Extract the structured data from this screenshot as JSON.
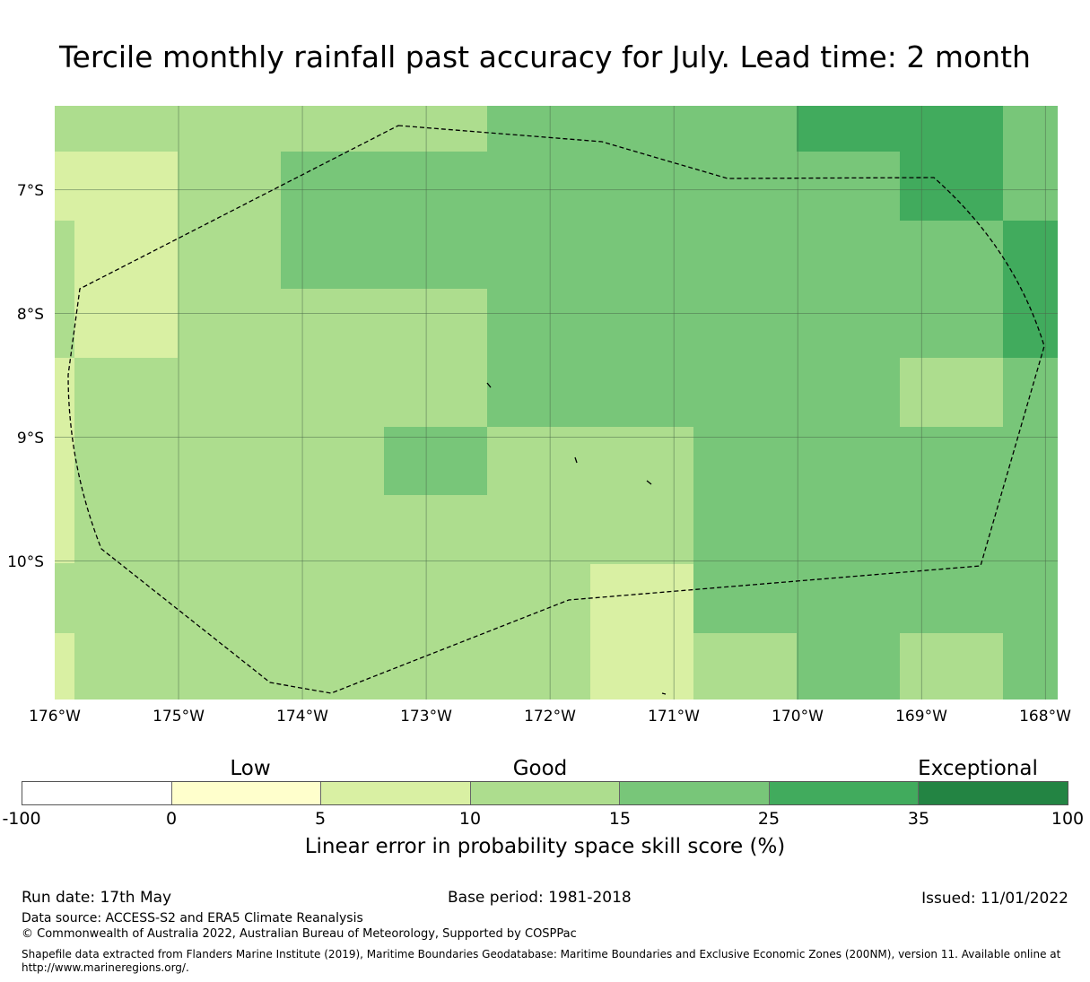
{
  "title": "Tercile monthly rainfall past accuracy for July. Lead time: 2 month",
  "map": {
    "lat_labels": [
      "7°S",
      "8°S",
      "9°S",
      "10°S"
    ],
    "lon_labels": [
      "176°W",
      "175°W",
      "174°W",
      "173°W",
      "172°W",
      "171°W",
      "170°W",
      "169°W",
      "168°W"
    ],
    "extent": {
      "lon_min": -176,
      "lon_max": -167.9,
      "lat_min": -11.12,
      "lat_max": -6.32
    },
    "grid_lines": true,
    "boundary_style": "dashed",
    "colors": {
      "c5": "#d9f0a3",
      "c10": "#addd8e",
      "c15": "#78c679",
      "c25": "#41ab5d",
      "grid": "#4a6a4a",
      "boundary": "#000000"
    }
  },
  "colorbar": {
    "category_labels": [
      "Low",
      "Good",
      "Exceptional"
    ],
    "ticks": [
      "-100",
      "0",
      "5",
      "10",
      "15",
      "25",
      "35",
      "100"
    ],
    "colors": [
      "#ffffff",
      "#ffffcc",
      "#d9f0a3",
      "#addd8e",
      "#78c679",
      "#41ab5d",
      "#238443"
    ],
    "title": "Linear error in probability space skill score (%)"
  },
  "footer": {
    "run_date": "Run date: 17th May",
    "base_period": "Base period: 1981-2018",
    "issued": "Issued: 11/01/2022",
    "data_source": "Data source: ACCESS-S2 and ERA5 Climate Reanalysis",
    "copyright": "© Commonwealth of Australia 2022, Australian Bureau of Meteorology, Supported by COSPPac",
    "shapefile": "Shapefile data extracted from Flanders Marine Institute (2019), Maritime Boundaries Geodatabase: Maritime Boundaries and Exclusive Economic Zones (200NM), version 11. Available online at http://www.marineregions.org/."
  }
}
